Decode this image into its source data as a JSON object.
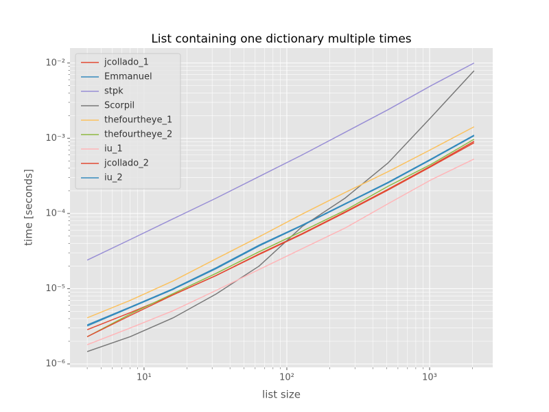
{
  "chart_data": {
    "type": "line",
    "title": "List containing one dictionary multiple times",
    "x_label": "list size",
    "y_label": "time [seconds]",
    "x": [
      4,
      8,
      16,
      32,
      64,
      128,
      256,
      512,
      1024,
      2048
    ],
    "series": [
      {
        "name": "jcollado_1",
        "color": "#E24A33",
        "values": [
          2.85e-06,
          4.8e-06,
          8.3e-06,
          1.5e-05,
          2.9e-05,
          5.4e-05,
          0.000105,
          0.00021,
          0.00043,
          0.00091
        ]
      },
      {
        "name": "Emmanuel",
        "color": "#348ABD",
        "values": [
          3.3e-06,
          5.7e-06,
          1e-05,
          1.9e-05,
          3.8e-05,
          7e-05,
          0.000135,
          0.00026,
          0.00053,
          0.0011
        ]
      },
      {
        "name": "stpk",
        "color": "#988ED5",
        "values": [
          2.4e-05,
          4.5e-05,
          8.5e-05,
          0.00016,
          0.00031,
          0.0006,
          0.0012,
          0.0024,
          0.005,
          0.01
        ]
      },
      {
        "name": "Scorpil",
        "color": "#777777",
        "values": [
          1.46e-06,
          2.3e-06,
          4.1e-06,
          8.5e-06,
          2e-05,
          6.7e-05,
          0.00016,
          0.00047,
          0.0019,
          0.0079
        ]
      },
      {
        "name": "thefourtheye_1",
        "color": "#FBC15E",
        "values": [
          4.1e-06,
          7e-06,
          1.27e-05,
          2.5e-05,
          4.9e-05,
          9.8e-05,
          0.00019,
          0.00036,
          0.00071,
          0.00142
        ]
      },
      {
        "name": "thefourtheye_2",
        "color": "#8EBA42",
        "values": [
          2.3e-06,
          4.6e-06,
          8.6e-06,
          1.6e-05,
          3.1e-05,
          5.8e-05,
          0.00011,
          0.00023,
          0.00045,
          0.00097
        ]
      },
      {
        "name": "iu_1",
        "color": "#FFB5B8",
        "values": [
          1.8e-06,
          3e-06,
          5.1e-06,
          9.5e-06,
          1.8e-05,
          3.4e-05,
          6.4e-05,
          0.000135,
          0.00028,
          0.00053
        ]
      },
      {
        "name": "jcollado_2",
        "color": "#E24A33",
        "values": [
          2.3e-06,
          4.4e-06,
          8.3e-06,
          1.5e-05,
          2.85e-05,
          5.3e-05,
          0.000103,
          0.000205,
          0.00042,
          0.00087
        ]
      },
      {
        "name": "iu_2",
        "color": "#348ABD",
        "values": [
          3.2e-06,
          5.6e-06,
          9.8e-06,
          1.85e-05,
          3.7e-05,
          6.9e-05,
          0.000133,
          0.000255,
          0.00052,
          0.00108
        ]
      }
    ],
    "xscale": "log",
    "yscale": "log",
    "grid": true,
    "minor_grid": true,
    "legend": "upper left",
    "xlim": [
      3.03,
      2767
    ],
    "ylim": [
      9e-07,
      0.0158
    ],
    "xticks": [
      {
        "value": 10,
        "label": "10¹"
      },
      {
        "value": 100,
        "label": "10²"
      },
      {
        "value": 1000,
        "label": "10³"
      }
    ],
    "yticks": [
      {
        "value": 1e-06,
        "label": "10⁻⁶"
      },
      {
        "value": 1e-05,
        "label": "10⁻⁵"
      },
      {
        "value": 0.0001,
        "label": "10⁻⁴"
      },
      {
        "value": 0.001,
        "label": "10⁻³"
      },
      {
        "value": 0.01,
        "label": "10⁻²"
      }
    ]
  }
}
